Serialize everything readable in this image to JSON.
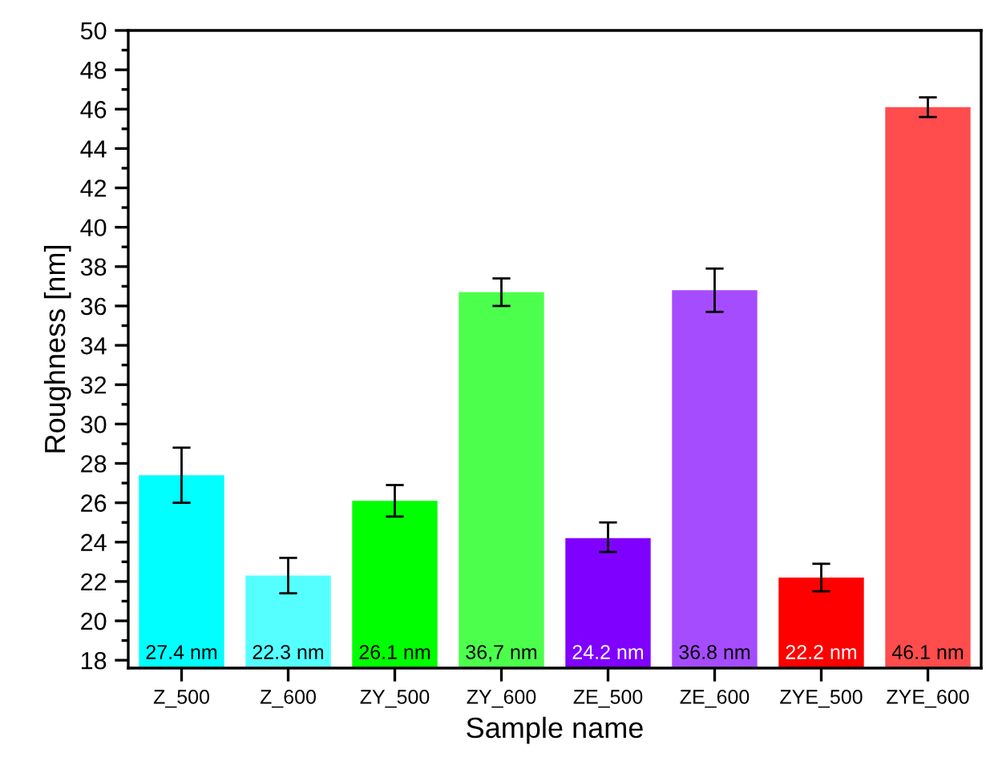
{
  "chart_data": {
    "type": "bar",
    "xlabel": "Sample name",
    "ylabel": "Roughness [nm]",
    "categories": [
      "Z_500",
      "Z_600",
      "ZY_500",
      "ZY_600",
      "ZE_500",
      "ZE_600",
      "ZYE_500",
      "ZYE_600"
    ],
    "values": [
      27.4,
      22.3,
      26.1,
      36.7,
      24.2,
      36.8,
      22.2,
      46.1
    ],
    "colors": [
      "#00ffff",
      "#55ffff",
      "#00ff00",
      "#4cff4c",
      "#8000ff",
      "#a64cff",
      "#ff0000",
      "#ff4c4c"
    ],
    "errors": [
      [
        26.0,
        28.8
      ],
      [
        21.4,
        23.2
      ],
      [
        25.3,
        26.9
      ],
      [
        36.0,
        37.4
      ],
      [
        23.5,
        25.0
      ],
      [
        35.7,
        37.9
      ],
      [
        21.5,
        22.9
      ],
      [
        45.6,
        46.6
      ]
    ],
    "value_labels": [
      "27.4 nm",
      "22.3 nm",
      "26.1 nm",
      "36,7 nm",
      "24.2 nm",
      "36.8 nm",
      "22.2 nm",
      "46.1 nm"
    ],
    "ylim": [
      17.6,
      50
    ],
    "yticks": [
      18,
      {
        "value": 19,
        "label": null
      },
      20,
      {
        "value": 21,
        "label": null
      },
      22,
      {
        "value": 23,
        "label": null
      },
      24,
      {
        "value": 25,
        "label": null
      },
      26,
      {
        "value": 27,
        "label": null
      },
      28,
      {
        "value": 29,
        "label": null
      },
      30,
      {
        "value": 31,
        "label": null
      },
      32,
      {
        "value": 33,
        "label": null
      },
      34,
      {
        "value": 35,
        "label": null
      },
      36,
      {
        "value": 37,
        "label": null
      },
      38,
      {
        "value": 39,
        "label": null
      },
      40,
      {
        "value": 41,
        "label": null
      },
      42,
      {
        "value": 43,
        "label": null
      },
      44,
      {
        "value": 45,
        "label": null
      },
      46,
      {
        "value": 47,
        "label": null
      },
      48,
      {
        "value": 49,
        "label": null
      },
      50
    ],
    "grid": false,
    "legend": false
  }
}
